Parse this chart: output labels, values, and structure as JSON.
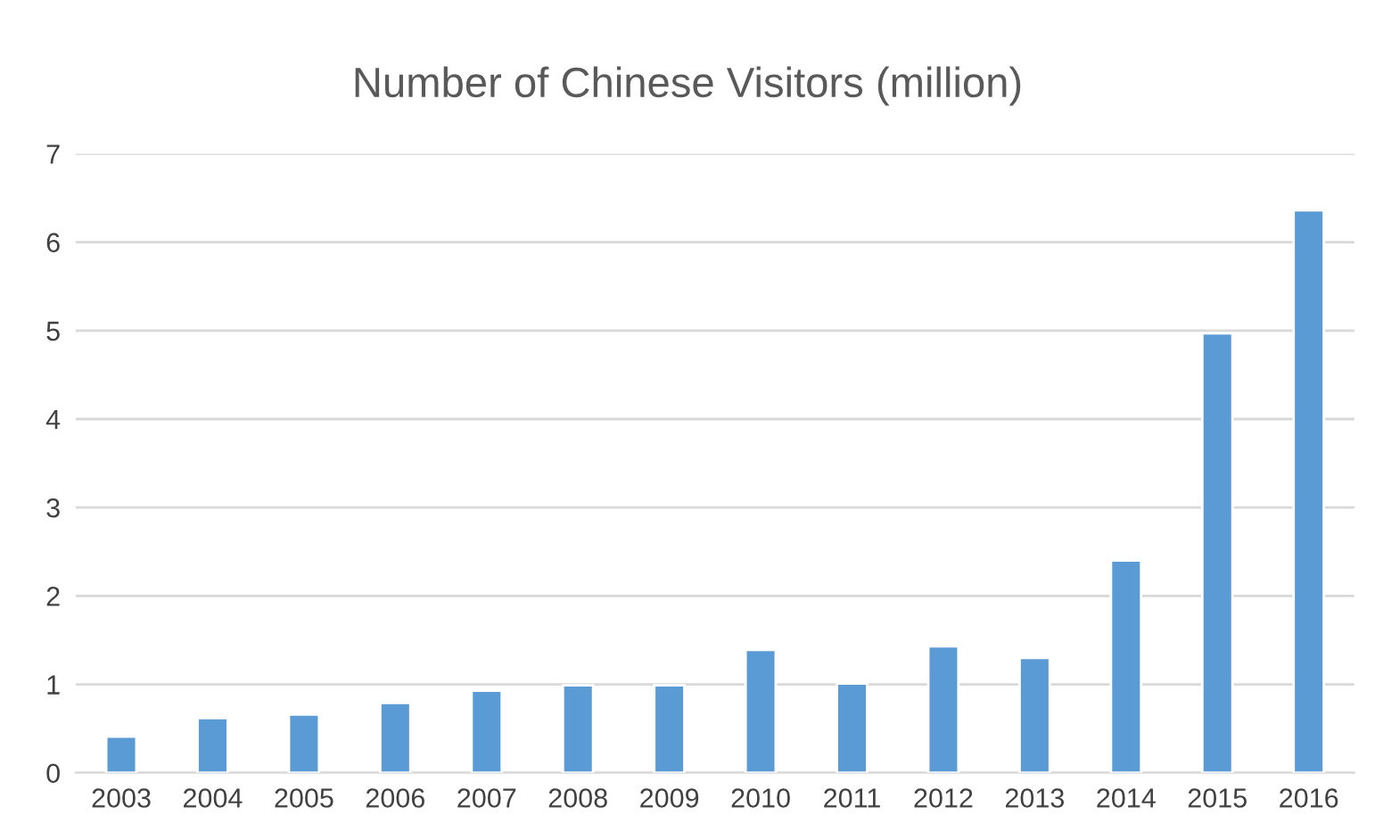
{
  "chart_data": {
    "type": "bar",
    "title": "Number of Chinese Visitors (million)",
    "categories": [
      "2003",
      "2004",
      "2005",
      "2006",
      "2007",
      "2008",
      "2009",
      "2010",
      "2011",
      "2012",
      "2013",
      "2014",
      "2015",
      "2016"
    ],
    "values": [
      0.41,
      0.62,
      0.66,
      0.79,
      0.93,
      0.99,
      0.99,
      1.39,
      1.01,
      1.43,
      1.3,
      2.4,
      4.97,
      6.36
    ],
    "color": "#5b9bd5",
    "ylim": [
      0,
      7
    ],
    "yticks": [
      0,
      1,
      2,
      3,
      4,
      5,
      6,
      7
    ],
    "grid": "y",
    "legend": false
  }
}
